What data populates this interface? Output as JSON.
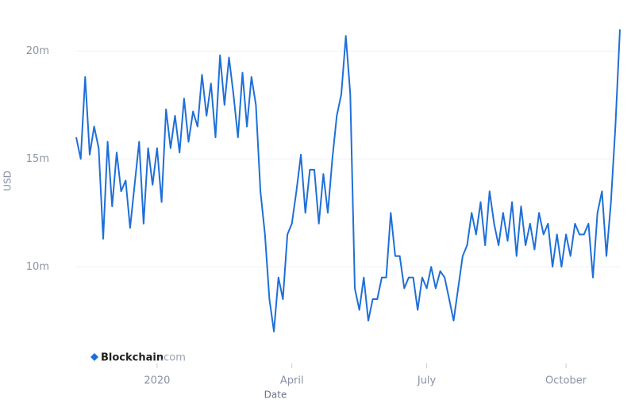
{
  "chart_data": {
    "type": "line",
    "x_label": "Date",
    "y_label": "USD",
    "watermark": {
      "brand": "Blockchain",
      "suffix": ".com"
    },
    "color": "#1f6fd8",
    "grid": true,
    "ylim": [
      6000000,
      22000000
    ],
    "yticks": [
      {
        "value": 10000000,
        "label": "10m"
      },
      {
        "value": 15000000,
        "label": "15m"
      },
      {
        "value": 20000000,
        "label": "20m"
      }
    ],
    "categories": [
      null,
      null,
      null,
      null,
      null,
      null,
      null,
      null,
      null,
      null,
      null,
      null,
      null,
      null,
      null,
      null,
      null,
      null,
      "2020",
      null,
      null,
      null,
      null,
      null,
      null,
      null,
      null,
      null,
      null,
      null,
      null,
      null,
      null,
      null,
      null,
      null,
      null,
      null,
      null,
      null,
      null,
      null,
      null,
      null,
      null,
      null,
      null,
      null,
      "April",
      null,
      null,
      null,
      null,
      null,
      null,
      null,
      null,
      null,
      null,
      null,
      null,
      null,
      null,
      null,
      null,
      null,
      null,
      null,
      null,
      null,
      null,
      null,
      null,
      null,
      null,
      null,
      null,
      null,
      "July",
      null,
      null,
      null,
      null,
      null,
      null,
      null,
      null,
      null,
      null,
      null,
      null,
      null,
      null,
      null,
      null,
      null,
      null,
      null,
      null,
      null,
      null,
      null,
      null,
      null,
      null,
      null,
      null,
      null,
      null,
      "October",
      null,
      null,
      null,
      null,
      null,
      null,
      null,
      null,
      null,
      null,
      null,
      null
    ],
    "values": [
      16000000,
      15000000,
      18800000,
      15200000,
      16500000,
      15500000,
      11300000,
      15800000,
      12800000,
      15300000,
      13500000,
      14000000,
      11800000,
      13800000,
      15800000,
      12000000,
      15500000,
      13800000,
      15500000,
      13000000,
      17300000,
      15500000,
      17000000,
      15300000,
      17800000,
      15800000,
      17200000,
      16500000,
      18900000,
      17000000,
      18500000,
      16000000,
      19800000,
      17500000,
      19700000,
      18000000,
      16000000,
      19000000,
      16500000,
      18800000,
      17500000,
      13500000,
      11500000,
      8500000,
      7000000,
      9500000,
      8500000,
      11500000,
      12000000,
      13500000,
      15200000,
      12500000,
      14500000,
      14500000,
      12000000,
      14300000,
      12500000,
      15000000,
      17000000,
      18000000,
      20700000,
      18000000,
      9000000,
      8000000,
      9500000,
      7500000,
      8500000,
      8500000,
      9500000,
      9500000,
      12500000,
      10500000,
      10500000,
      9000000,
      9500000,
      9500000,
      8000000,
      9500000,
      9000000,
      10000000,
      9000000,
      9800000,
      9500000,
      8500000,
      7500000,
      9000000,
      10500000,
      11000000,
      12500000,
      11500000,
      13000000,
      11000000,
      13500000,
      12000000,
      11000000,
      12500000,
      11200000,
      13000000,
      10500000,
      12800000,
      11000000,
      12000000,
      10800000,
      12500000,
      11500000,
      12000000,
      10000000,
      11500000,
      10000000,
      11500000,
      10500000,
      12000000,
      11500000,
      11500000,
      12000000,
      9500000,
      12500000,
      13500000,
      10500000,
      13000000,
      16500000,
      21000000
    ]
  }
}
